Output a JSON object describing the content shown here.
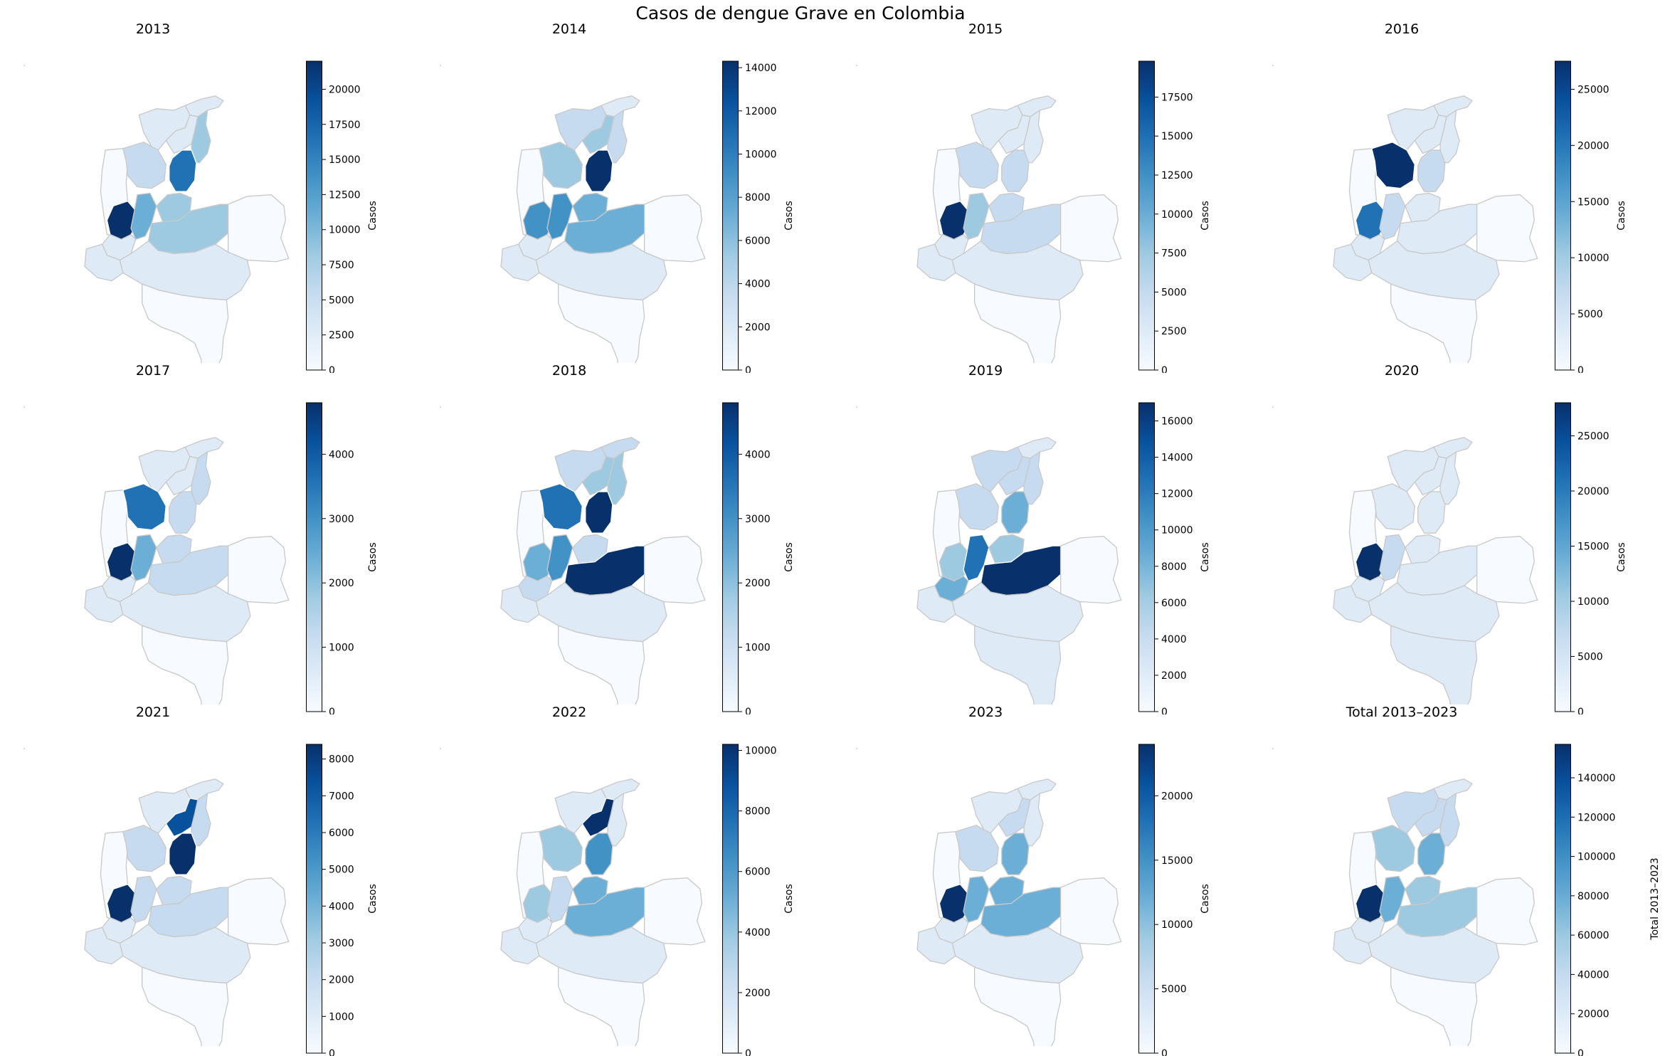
{
  "title": "Casos de dengue Grave en Colombia",
  "palette": [
    "#f7fbff",
    "#deebf7",
    "#c6dbef",
    "#9ecae1",
    "#6baed6",
    "#4292c6",
    "#2171b5",
    "#08519c",
    "#08306b"
  ],
  "panels": [
    {
      "title": "2013",
      "cbar_label": "Casos",
      "ticks": [
        0,
        2500,
        5000,
        7500,
        10000,
        12500,
        15000,
        17500,
        20000
      ],
      "max": 22000,
      "shades": {
        "choco": 0,
        "caribe_n": 1,
        "antioquia": 2,
        "santander": 6,
        "cesar": 3,
        "valle": 8,
        "tolima": 4,
        "cundinamarca": 3,
        "meta": 3,
        "llanos": 0,
        "sur": 1,
        "amazon": 0,
        "cauca": 1,
        "narino": 1,
        "guajira": 1,
        "norte": 1
      }
    },
    {
      "title": "2014",
      "cbar_label": "Casos",
      "ticks": [
        0,
        2000,
        4000,
        6000,
        8000,
        10000,
        12000,
        14000
      ],
      "max": 14300,
      "shades": {
        "choco": 0,
        "caribe_n": 2,
        "antioquia": 3,
        "santander": 8,
        "cesar": 2,
        "valle": 5,
        "tolima": 5,
        "cundinamarca": 4,
        "meta": 4,
        "llanos": 0,
        "sur": 1,
        "amazon": 0,
        "cauca": 1,
        "narino": 1,
        "guajira": 1,
        "norte": 3
      }
    },
    {
      "title": "2015",
      "cbar_label": "Casos",
      "ticks": [
        0,
        2500,
        5000,
        7500,
        10000,
        12500,
        15000,
        17500
      ],
      "max": 19800,
      "shades": {
        "choco": 0,
        "caribe_n": 1,
        "antioquia": 2,
        "santander": 2,
        "cesar": 1,
        "valle": 8,
        "tolima": 3,
        "cundinamarca": 2,
        "meta": 2,
        "llanos": 0,
        "sur": 1,
        "amazon": 0,
        "cauca": 1,
        "narino": 1,
        "guajira": 1,
        "norte": 1
      }
    },
    {
      "title": "2016",
      "cbar_label": "Casos",
      "ticks": [
        0,
        5000,
        10000,
        15000,
        20000,
        25000
      ],
      "max": 27500,
      "shades": {
        "choco": 0,
        "caribe_n": 1,
        "antioquia": 8,
        "santander": 2,
        "cesar": 1,
        "valle": 6,
        "tolima": 2,
        "cundinamarca": 1,
        "meta": 1,
        "llanos": 0,
        "sur": 1,
        "amazon": 0,
        "cauca": 1,
        "narino": 1,
        "guajira": 1,
        "norte": 1
      }
    },
    {
      "title": "2017",
      "cbar_label": "Casos",
      "ticks": [
        0,
        1000,
        2000,
        3000,
        4000
      ],
      "max": 4800,
      "shades": {
        "choco": 0,
        "caribe_n": 1,
        "antioquia": 6,
        "santander": 2,
        "cesar": 2,
        "valle": 8,
        "tolima": 4,
        "cundinamarca": 2,
        "meta": 2,
        "llanos": 0,
        "sur": 1,
        "amazon": 0,
        "cauca": 1,
        "narino": 1,
        "guajira": 1,
        "norte": 1
      }
    },
    {
      "title": "2018",
      "cbar_label": "Casos",
      "ticks": [
        0,
        1000,
        2000,
        3000,
        4000
      ],
      "max": 4800,
      "shades": {
        "choco": 0,
        "caribe_n": 2,
        "antioquia": 6,
        "santander": 8,
        "cesar": 3,
        "valle": 4,
        "tolima": 5,
        "cundinamarca": 2,
        "meta": 8,
        "llanos": 0,
        "sur": 1,
        "amazon": 0,
        "cauca": 2,
        "narino": 1,
        "guajira": 2,
        "norte": 3
      }
    },
    {
      "title": "2019",
      "cbar_label": "Casos",
      "ticks": [
        0,
        2000,
        4000,
        6000,
        8000,
        10000,
        12000,
        14000,
        16000
      ],
      "max": 17000,
      "shades": {
        "choco": 0,
        "caribe_n": 2,
        "antioquia": 2,
        "santander": 4,
        "cesar": 2,
        "valle": 3,
        "tolima": 6,
        "cundinamarca": 3,
        "meta": 8,
        "llanos": 0,
        "sur": 1,
        "amazon": 1,
        "cauca": 4,
        "narino": 1,
        "guajira": 1,
        "norte": 2
      }
    },
    {
      "title": "2020",
      "cbar_label": "Casos",
      "ticks": [
        0,
        5000,
        10000,
        15000,
        20000,
        25000
      ],
      "max": 28000,
      "shades": {
        "choco": 0,
        "caribe_n": 1,
        "antioquia": 1,
        "santander": 1,
        "cesar": 1,
        "valle": 8,
        "tolima": 2,
        "cundinamarca": 1,
        "meta": 1,
        "llanos": 0,
        "sur": 1,
        "amazon": 1,
        "cauca": 1,
        "narino": 1,
        "guajira": 1,
        "norte": 1
      }
    },
    {
      "title": "2021",
      "cbar_label": "Casos",
      "ticks": [
        0,
        1000,
        2000,
        3000,
        4000,
        5000,
        6000,
        7000,
        8000
      ],
      "max": 8400,
      "shades": {
        "choco": 0,
        "caribe_n": 1,
        "antioquia": 2,
        "santander": 8,
        "cesar": 2,
        "valle": 8,
        "tolima": 2,
        "cundinamarca": 2,
        "meta": 2,
        "llanos": 0,
        "sur": 1,
        "amazon": 0,
        "cauca": 1,
        "narino": 1,
        "guajira": 1,
        "norte": 7
      }
    },
    {
      "title": "2022",
      "cbar_label": "Casos",
      "ticks": [
        0,
        2000,
        4000,
        6000,
        8000,
        10000
      ],
      "max": 10200,
      "shades": {
        "choco": 0,
        "caribe_n": 1,
        "antioquia": 3,
        "santander": 5,
        "cesar": 1,
        "valle": 3,
        "tolima": 2,
        "cundinamarca": 4,
        "meta": 4,
        "llanos": 0,
        "sur": 1,
        "amazon": 0,
        "cauca": 1,
        "narino": 1,
        "guajira": 1,
        "norte": 8
      }
    },
    {
      "title": "2023",
      "cbar_label": "Casos",
      "ticks": [
        0,
        5000,
        10000,
        15000,
        20000
      ],
      "max": 24000,
      "shades": {
        "choco": 0,
        "caribe_n": 1,
        "antioquia": 2,
        "santander": 4,
        "cesar": 1,
        "valle": 8,
        "tolima": 4,
        "cundinamarca": 4,
        "meta": 4,
        "llanos": 0,
        "sur": 1,
        "amazon": 0,
        "cauca": 1,
        "narino": 1,
        "guajira": 1,
        "norte": 2
      }
    },
    {
      "title": "Total 2013–2023",
      "cbar_label": "Total 2013–2023",
      "ticks": [
        0,
        20000,
        40000,
        60000,
        80000,
        100000,
        120000,
        140000
      ],
      "max": 157000,
      "shades": {
        "choco": 0,
        "caribe_n": 2,
        "antioquia": 3,
        "santander": 4,
        "cesar": 2,
        "valle": 8,
        "tolima": 4,
        "cundinamarca": 3,
        "meta": 3,
        "llanos": 0,
        "sur": 1,
        "amazon": 0,
        "cauca": 1,
        "narino": 1,
        "guajira": 1,
        "norte": 2
      }
    }
  ]
}
